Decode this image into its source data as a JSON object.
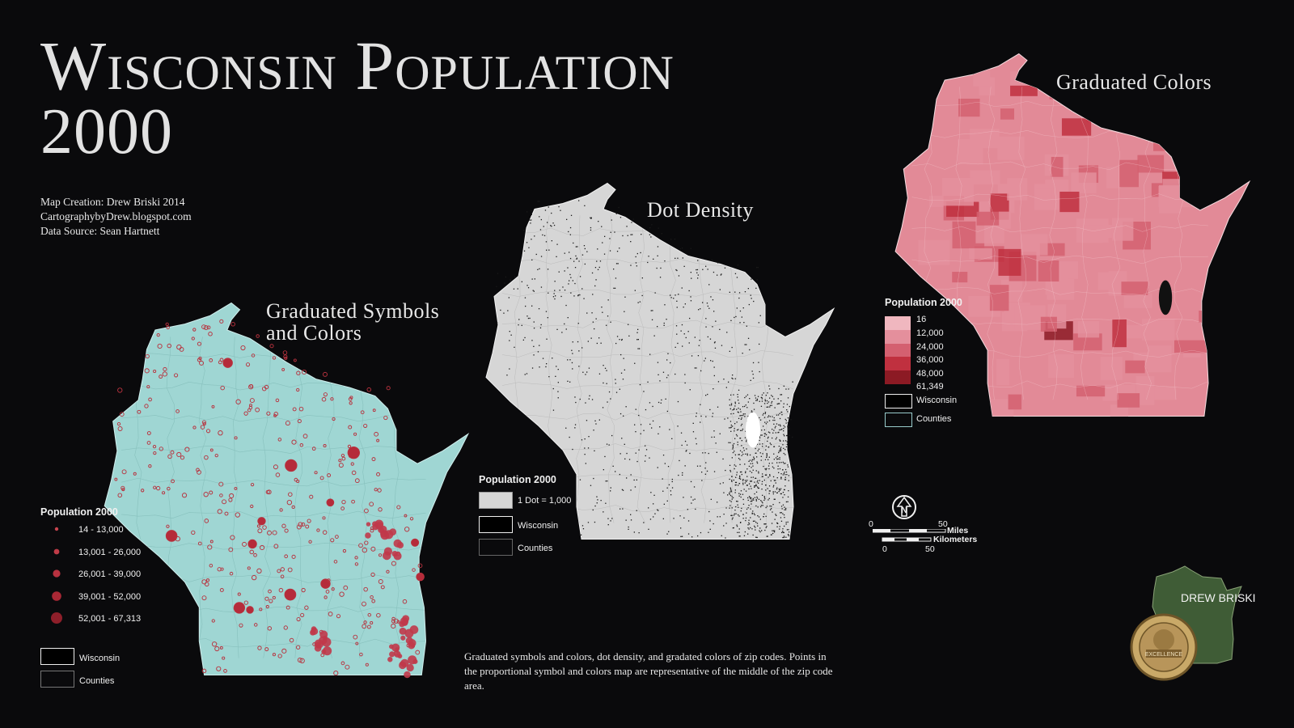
{
  "title": {
    "line1": "Wisconsin Population",
    "line2": "2000"
  },
  "credits": {
    "creator": "Map Creation: Drew Briski 2014",
    "site": "CartographybyDrew.blogspot.com",
    "source": "Data Source: Sean Hartnett"
  },
  "maps": {
    "symbols": {
      "title_line1": "Graduated Symbols",
      "title_line2": "and Colors",
      "fill": "#9fd6d3",
      "dot_color": "#b8323e",
      "legend": {
        "title": "Population 2000",
        "classes": [
          "14 - 13,000",
          "13,001 - 26,000",
          "26,001 - 39,000",
          "39,001 - 52,000",
          "52,001 - 67,313"
        ],
        "wisconsin": "Wisconsin",
        "counties": "Counties"
      }
    },
    "dot": {
      "title": "Dot Density",
      "fill": "#d6d6d6",
      "legend": {
        "title": "Population 2000",
        "dot_label": "1 Dot = 1,000",
        "wisconsin": "Wisconsin",
        "counties": "Counties"
      }
    },
    "colors": {
      "title": "Graduated Colors",
      "fill": "#e28a97",
      "legend": {
        "title": "Population 2000",
        "breaks": [
          "16",
          "12,000",
          "24,000",
          "36,000",
          "48,000",
          "61,349"
        ],
        "class_colors": [
          "#f0b7bf",
          "#e48f9c",
          "#d46070",
          "#c0303f",
          "#8c1a24"
        ],
        "wisconsin": "Wisconsin",
        "counties": "Counties"
      }
    }
  },
  "scale_bar": {
    "miles_zero": "0",
    "miles_max": "50",
    "miles_label": "Miles",
    "km_zero": "0",
    "km_max": "50",
    "km_label": "Kilometers",
    "north_letter": "N"
  },
  "caption": "Graduated symbols and colors, dot density, and gradated colors of zip codes. Points in the proportional symbol and colors map are representative of the middle of the zip code area.",
  "badge": {
    "name": "DREW BRISKI",
    "seal_text": "EXCELLENCE"
  }
}
